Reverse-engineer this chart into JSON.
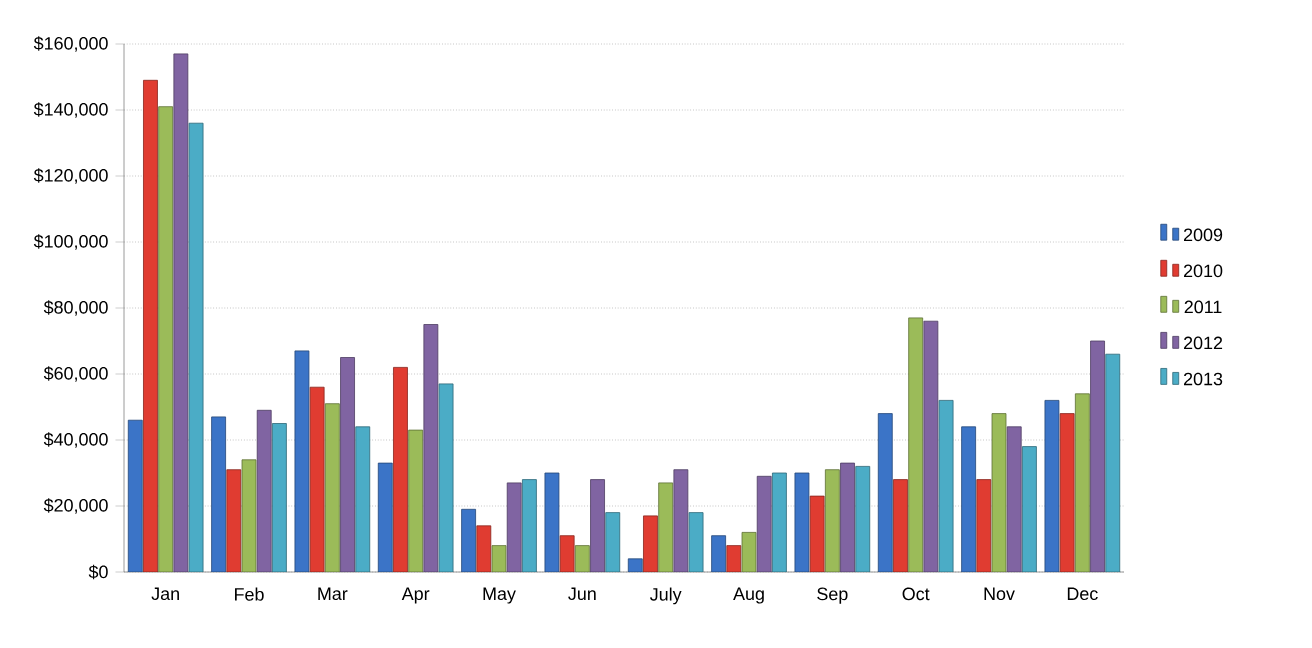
{
  "chart_data": {
    "type": "bar",
    "categories": [
      "Jan",
      "Feb",
      "Mar",
      "Apr",
      "May",
      "Jun",
      "July",
      "Aug",
      "Sep",
      "Oct",
      "Nov",
      "Dec"
    ],
    "series": [
      {
        "name": "2009",
        "color": "#3b74c7",
        "values": [
          46000,
          47000,
          67000,
          33000,
          19000,
          30000,
          4000,
          11000,
          30000,
          48000,
          44000,
          52000
        ]
      },
      {
        "name": "2010",
        "color": "#e03c31",
        "values": [
          149000,
          31000,
          56000,
          62000,
          14000,
          11000,
          17000,
          8000,
          23000,
          28000,
          28000,
          48000
        ]
      },
      {
        "name": "2011",
        "color": "#9bbb59",
        "values": [
          141000,
          34000,
          51000,
          43000,
          8000,
          8000,
          27000,
          12000,
          31000,
          77000,
          48000,
          54000
        ]
      },
      {
        "name": "2012",
        "color": "#8064a2",
        "values": [
          157000,
          49000,
          65000,
          75000,
          27000,
          28000,
          31000,
          29000,
          33000,
          76000,
          44000,
          70000
        ]
      },
      {
        "name": "2013",
        "color": "#4bacc6",
        "values": [
          136000,
          45000,
          44000,
          57000,
          28000,
          18000,
          18000,
          30000,
          32000,
          52000,
          38000,
          66000
        ]
      }
    ],
    "ylim": [
      0,
      160000
    ],
    "yticks": [
      {
        "value": 0,
        "label": "$0"
      },
      {
        "value": 20000,
        "label": "$20,000"
      },
      {
        "value": 40000,
        "label": "$40,000"
      },
      {
        "value": 60000,
        "label": "$60,000"
      },
      {
        "value": 80000,
        "label": "$80,000"
      },
      {
        "value": 100000,
        "label": "$100,000"
      },
      {
        "value": 120000,
        "label": "$120,000"
      },
      {
        "value": 140000,
        "label": "$140,000"
      },
      {
        "value": 160000,
        "label": "$160,000"
      }
    ],
    "grid": "y",
    "legend": "right"
  }
}
